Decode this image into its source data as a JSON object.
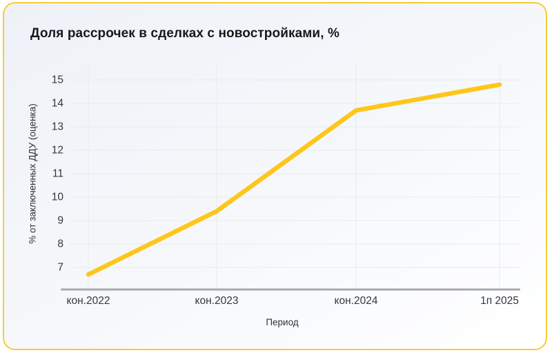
{
  "card": {
    "border_color": "#f8cb35",
    "background_top": "#eef1f7",
    "background_bottom": "#ffffff"
  },
  "chart_data": {
    "type": "line",
    "title": "Доля рассрочек в сделках с новостройками, %",
    "xlabel": "Период",
    "ylabel": "% от заключенных ДДУ (оценка)",
    "categories": [
      "кон.2022",
      "кон.2023",
      "кон.2024",
      "1п 2025"
    ],
    "series": [
      {
        "name": "Доля рассрочек",
        "values": [
          6.7,
          9.4,
          13.7,
          14.8
        ]
      }
    ],
    "yticks": [
      7,
      8,
      9,
      10,
      11,
      12,
      13,
      14,
      15
    ],
    "ylim": [
      6.0,
      15.6
    ],
    "grid": true,
    "legend": "none",
    "line_color": "#ffc61a",
    "gridline_color": "#e8eaee",
    "axis_line_color": "#a6a9ad",
    "tick_label_color": "#35373b"
  }
}
